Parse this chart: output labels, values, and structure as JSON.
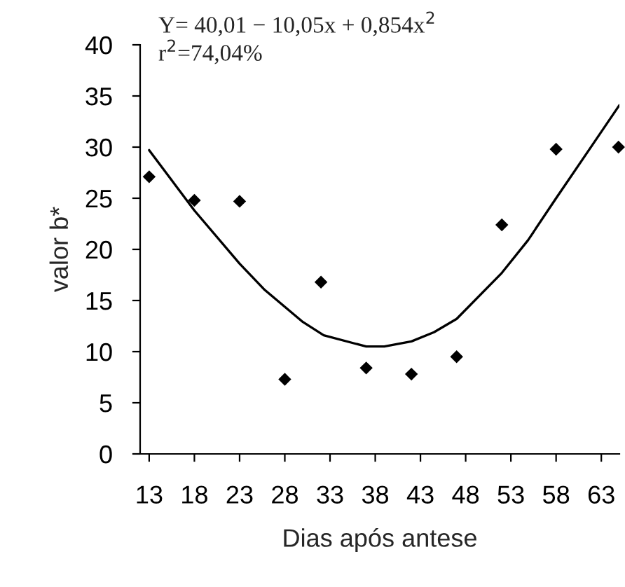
{
  "chart_data": {
    "type": "scatter",
    "xlabel": "Dias após antese",
    "ylabel": "valor b*",
    "annotations": [
      "Y= 40,01 − 10,05x + 0,854x$^{2}$",
      "r$^{2}$=74,04%"
    ],
    "series": [
      {
        "color": "#000000",
        "marker": "diamond",
        "x": [
          13,
          18,
          23,
          28,
          32,
          37,
          42,
          47,
          52,
          58,
          64.9
        ],
        "values": [
          27.1,
          24.8,
          24.7,
          7.3,
          16.8,
          8.4,
          7.8,
          9.5,
          22.4,
          29.8,
          30.0
        ]
      },
      {
        "type": "line",
        "color": "#000000",
        "marker": "none",
        "line_style": "solid",
        "x": [
          13,
          18,
          23,
          25.7,
          30,
          32.3,
          37,
          39,
          42,
          44.5,
          47,
          52,
          54.9,
          58,
          61.7,
          65
        ],
        "values": [
          29.7,
          23.8,
          18.6,
          16.1,
          12.9,
          11.6,
          10.5,
          10.5,
          11.0,
          11.9,
          13.2,
          17.7,
          20.9,
          25.0,
          29.8,
          34.1
        ]
      }
    ],
    "xlim": [
      12,
      65
    ],
    "xticks": [
      13,
      18,
      23,
      28,
      33,
      38,
      43,
      48,
      53,
      58,
      63
    ],
    "ylim": [
      0,
      40
    ],
    "yticks": [
      0,
      5,
      10,
      15,
      20,
      25,
      30,
      35,
      40
    ],
    "grid": false,
    "legend": false
  }
}
